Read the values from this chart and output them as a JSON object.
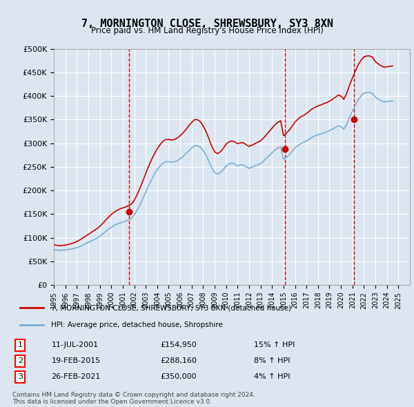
{
  "title": "7, MORNINGTON CLOSE, SHREWSBURY, SY3 8XN",
  "subtitle": "Price paid vs. HM Land Registry's House Price Index (HPI)",
  "background_color": "#dce6f0",
  "plot_bg_color": "#dce6f0",
  "hpi_color": "#7ab0d4",
  "price_color": "#cc0000",
  "ylim": [
    0,
    500000
  ],
  "yticks": [
    0,
    50000,
    100000,
    150000,
    200000,
    250000,
    300000,
    350000,
    400000,
    450000,
    500000
  ],
  "ytick_labels": [
    "£0",
    "£50K",
    "£100K",
    "£150K",
    "£200K",
    "£250K",
    "£300K",
    "£350K",
    "£400K",
    "£450K",
    "£500K"
  ],
  "xstart": 1995,
  "xend": 2026,
  "sales": [
    {
      "date_num": 2001.53,
      "price": 154950,
      "label": "1",
      "date_str": "11-JUL-2001",
      "pct": "15%",
      "fmt_price": "£154,950"
    },
    {
      "date_num": 2015.13,
      "price": 288160,
      "label": "2",
      "date_str": "19-FEB-2015",
      "pct": "8%",
      "fmt_price": "£288,160"
    },
    {
      "date_num": 2021.15,
      "price": 350000,
      "label": "3",
      "date_str": "26-FEB-2021",
      "pct": "4%",
      "fmt_price": "£350,000"
    }
  ],
  "legend_label_red": "7, MORNINGTON CLOSE, SHREWSBURY, SY3 8XN (detached house)",
  "legend_label_blue": "HPI: Average price, detached house, Shropshire",
  "footnote": "Contains HM Land Registry data © Crown copyright and database right 2024.\nThis data is licensed under the Open Government Licence v3.0.",
  "hpi_data": {
    "years": [
      1995.0,
      1995.25,
      1995.5,
      1995.75,
      1996.0,
      1996.25,
      1996.5,
      1996.75,
      1997.0,
      1997.25,
      1997.5,
      1997.75,
      1998.0,
      1998.25,
      1998.5,
      1998.75,
      1999.0,
      1999.25,
      1999.5,
      1999.75,
      2000.0,
      2000.25,
      2000.5,
      2000.75,
      2001.0,
      2001.25,
      2001.5,
      2001.75,
      2002.0,
      2002.25,
      2002.5,
      2002.75,
      2003.0,
      2003.25,
      2003.5,
      2003.75,
      2004.0,
      2004.25,
      2004.5,
      2004.75,
      2005.0,
      2005.25,
      2005.5,
      2005.75,
      2006.0,
      2006.25,
      2006.5,
      2006.75,
      2007.0,
      2007.25,
      2007.5,
      2007.75,
      2008.0,
      2008.25,
      2008.5,
      2008.75,
      2009.0,
      2009.25,
      2009.5,
      2009.75,
      2010.0,
      2010.25,
      2010.5,
      2010.75,
      2011.0,
      2011.25,
      2011.5,
      2011.75,
      2012.0,
      2012.25,
      2012.5,
      2012.75,
      2013.0,
      2013.25,
      2013.5,
      2013.75,
      2014.0,
      2014.25,
      2014.5,
      2014.75,
      2015.0,
      2015.25,
      2015.5,
      2015.75,
      2016.0,
      2016.25,
      2016.5,
      2016.75,
      2017.0,
      2017.25,
      2017.5,
      2017.75,
      2018.0,
      2018.25,
      2018.5,
      2018.75,
      2019.0,
      2019.25,
      2019.5,
      2019.75,
      2020.0,
      2020.25,
      2020.5,
      2020.75,
      2021.0,
      2021.25,
      2021.5,
      2021.75,
      2022.0,
      2022.25,
      2022.5,
      2022.75,
      2023.0,
      2023.25,
      2023.5,
      2023.75,
      2024.0,
      2024.25,
      2024.5
    ],
    "values": [
      75000,
      74000,
      73000,
      73500,
      74000,
      75000,
      76000,
      77000,
      79000,
      81000,
      84000,
      87000,
      90000,
      93000,
      96000,
      99000,
      103000,
      108000,
      113000,
      118000,
      122000,
      126000,
      129000,
      131000,
      133000,
      135000,
      138000,
      141000,
      148000,
      158000,
      170000,
      183000,
      196000,
      210000,
      222000,
      234000,
      244000,
      252000,
      258000,
      261000,
      261000,
      260000,
      261000,
      263000,
      267000,
      272000,
      278000,
      284000,
      290000,
      295000,
      295000,
      292000,
      285000,
      275000,
      262000,
      248000,
      238000,
      235000,
      238000,
      244000,
      252000,
      256000,
      258000,
      256000,
      252000,
      254000,
      254000,
      250000,
      247000,
      249000,
      252000,
      254000,
      257000,
      262000,
      268000,
      274000,
      280000,
      286000,
      290000,
      293000,
      266000,
      270000,
      276000,
      283000,
      290000,
      295000,
      299000,
      302000,
      305000,
      309000,
      313000,
      316000,
      318000,
      320000,
      322000,
      324000,
      327000,
      330000,
      333000,
      337000,
      335000,
      330000,
      340000,
      355000,
      368000,
      381000,
      392000,
      400000,
      406000,
      408000,
      408000,
      405000,
      398000,
      393000,
      390000,
      388000,
      388000,
      389000,
      390000
    ]
  },
  "price_data": {
    "years": [
      1995.0,
      1995.25,
      1995.5,
      1995.75,
      1996.0,
      1996.25,
      1996.5,
      1996.75,
      1997.0,
      1997.25,
      1997.5,
      1997.75,
      1998.0,
      1998.25,
      1998.5,
      1998.75,
      1999.0,
      1999.25,
      1999.5,
      1999.75,
      2000.0,
      2000.25,
      2000.5,
      2000.75,
      2001.0,
      2001.25,
      2001.5,
      2001.75,
      2002.0,
      2002.25,
      2002.5,
      2002.75,
      2003.0,
      2003.25,
      2003.5,
      2003.75,
      2004.0,
      2004.25,
      2004.5,
      2004.75,
      2005.0,
      2005.25,
      2005.5,
      2005.75,
      2006.0,
      2006.25,
      2006.5,
      2006.75,
      2007.0,
      2007.25,
      2007.5,
      2007.75,
      2008.0,
      2008.25,
      2008.5,
      2008.75,
      2009.0,
      2009.25,
      2009.5,
      2009.75,
      2010.0,
      2010.25,
      2010.5,
      2010.75,
      2011.0,
      2011.25,
      2011.5,
      2011.75,
      2012.0,
      2012.25,
      2012.5,
      2012.75,
      2013.0,
      2013.25,
      2013.5,
      2013.75,
      2014.0,
      2014.25,
      2014.5,
      2014.75,
      2015.0,
      2015.25,
      2015.5,
      2015.75,
      2016.0,
      2016.25,
      2016.5,
      2016.75,
      2017.0,
      2017.25,
      2017.5,
      2017.75,
      2018.0,
      2018.25,
      2018.5,
      2018.75,
      2019.0,
      2019.25,
      2019.5,
      2019.75,
      2020.0,
      2020.25,
      2020.5,
      2020.75,
      2021.0,
      2021.25,
      2021.5,
      2021.75,
      2022.0,
      2022.25,
      2022.5,
      2022.75,
      2023.0,
      2023.25,
      2023.5,
      2023.75,
      2024.0,
      2024.25,
      2024.5
    ],
    "values": [
      85000,
      84000,
      83000,
      83500,
      84500,
      85500,
      87000,
      89000,
      92000,
      95000,
      99000,
      103000,
      107000,
      111000,
      115000,
      119000,
      124000,
      130000,
      137000,
      143000,
      149000,
      154000,
      158000,
      161000,
      163000,
      165000,
      168000,
      171000,
      179000,
      191000,
      205000,
      220000,
      236000,
      251000,
      265000,
      277000,
      288000,
      297000,
      304000,
      308000,
      308000,
      307000,
      308000,
      311000,
      316000,
      322000,
      329000,
      337000,
      344000,
      350000,
      350000,
      346000,
      337000,
      325000,
      310000,
      294000,
      282000,
      278000,
      282000,
      289000,
      298000,
      303000,
      305000,
      303000,
      299000,
      301000,
      301000,
      297000,
      293000,
      296000,
      299000,
      302000,
      305000,
      311000,
      318000,
      325000,
      332000,
      339000,
      344000,
      348000,
      316000,
      321000,
      328000,
      336000,
      345000,
      351000,
      356000,
      359000,
      363000,
      368000,
      373000,
      376000,
      379000,
      381000,
      384000,
      386000,
      389000,
      393000,
      397000,
      402000,
      400000,
      393000,
      406000,
      423000,
      438000,
      453000,
      466000,
      476000,
      483000,
      485000,
      485000,
      482000,
      473000,
      468000,
      464000,
      461000,
      462000,
      463000,
      464000
    ]
  }
}
